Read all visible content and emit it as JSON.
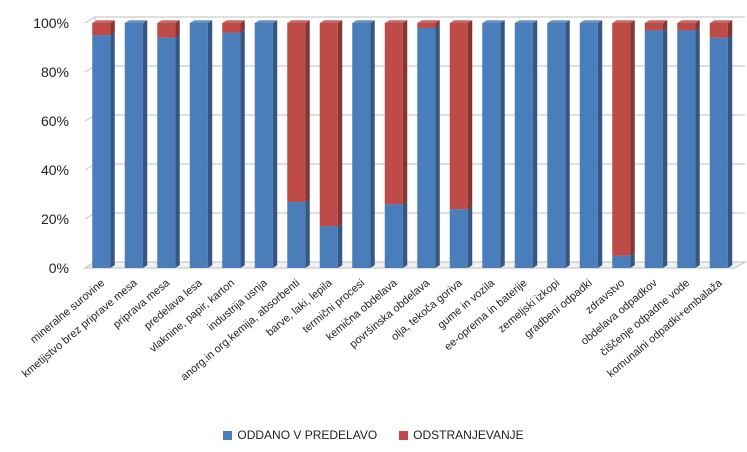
{
  "chart_data": {
    "type": "bar",
    "stacked": true,
    "percent": true,
    "categories": [
      "mineralne surovine",
      "kmetijstvo brez priprave mesa",
      "priprava mesa",
      "predelava lesa",
      "vlaknine, papir, karton",
      "industrija usnja",
      "anorg.in org.kemija, absorbenti",
      "barve, laki, lepila",
      "termični procesi",
      "kemična obdelava",
      "površinska obdelava",
      "olja, tekoča goriva",
      "gume in vozila",
      "ee-oprema in baterije",
      "zemeljski izkopi",
      "gradbeni odpadki",
      "zdravstvo",
      "obdelava odpadkov",
      "čiščenje odpadne vode",
      "komunalni odpadki+embalaža"
    ],
    "series": [
      {
        "name": "ODDANO V PREDELAVO",
        "color": "#4a7ebb",
        "values": [
          95,
          100,
          94,
          100,
          96,
          100,
          27,
          17,
          100,
          26,
          98,
          24,
          100,
          100,
          100,
          100,
          5,
          97,
          97,
          94
        ]
      },
      {
        "name": "ODSTRANJEVANJE",
        "color": "#be4b48",
        "values": [
          5,
          0,
          6,
          0,
          4,
          0,
          73,
          83,
          0,
          74,
          2,
          76,
          0,
          0,
          0,
          0,
          95,
          3,
          3,
          6
        ]
      }
    ],
    "yticks": [
      "0%",
      "20%",
      "40%",
      "60%",
      "80%",
      "100%"
    ],
    "ylim": [
      0,
      100
    ],
    "grid": true,
    "legend": "bottom"
  }
}
